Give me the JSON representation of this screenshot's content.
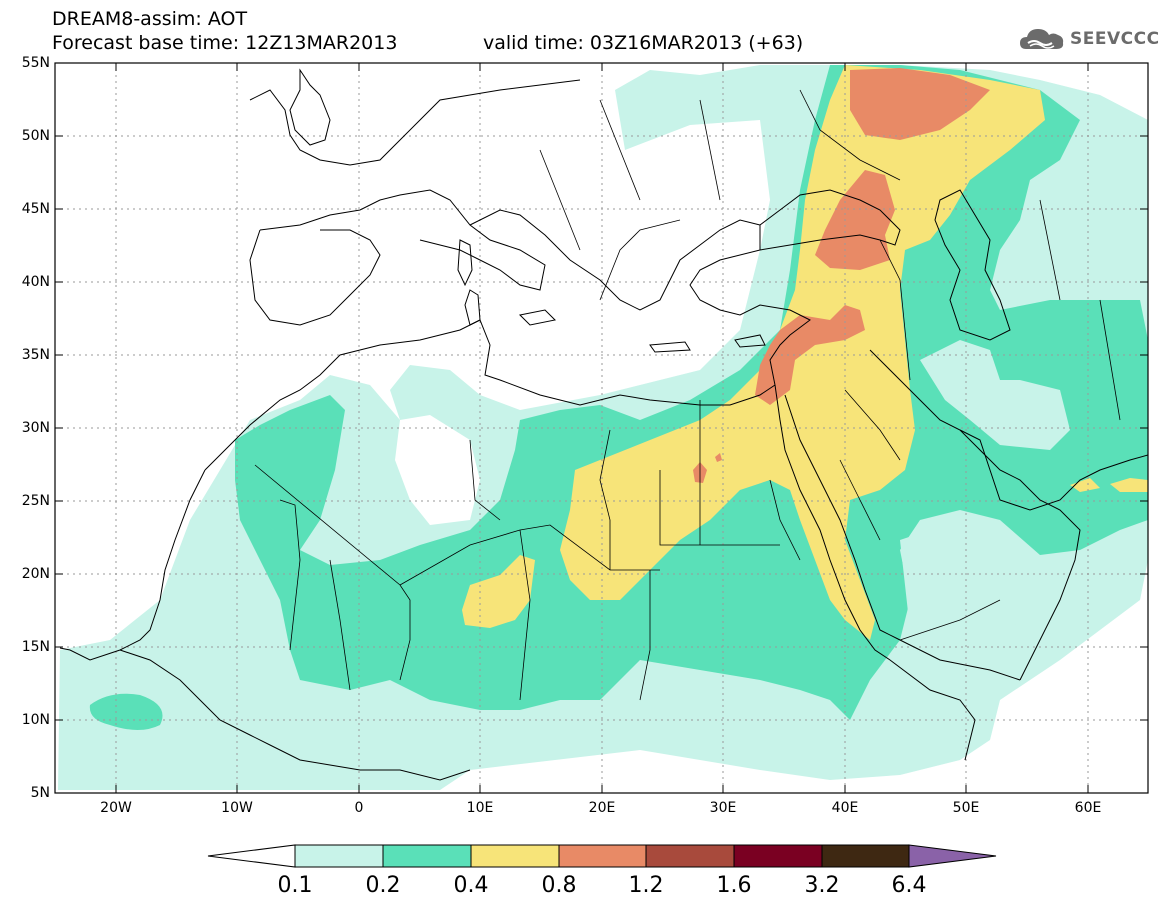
{
  "header": {
    "line1": "DREAM8-assim: AOT",
    "line2_left": "Forecast base time: 12Z13MAR2013",
    "line2_right": "valid time: 03Z16MAR2013 (+63)"
  },
  "logo": {
    "icon": "cloud-logo-icon",
    "text": "SEEVCCC"
  },
  "axes": {
    "lat_labels": [
      "55N",
      "50N",
      "45N",
      "40N",
      "35N",
      "30N",
      "25N",
      "20N",
      "15N",
      "10N",
      "5N"
    ],
    "lon_labels": [
      "20W",
      "10W",
      "0",
      "10E",
      "20E",
      "30E",
      "40E",
      "50E",
      "60E"
    ]
  },
  "colorbar": {
    "labels": [
      "0.1",
      "0.2",
      "0.4",
      "0.8",
      "1.2",
      "1.6",
      "3.2",
      "6.4"
    ],
    "colors": [
      "#ffffff",
      "#c8f3e9",
      "#5ae0b8",
      "#f7e479",
      "#e88a66",
      "#a84a3c",
      "#7a0022",
      "#3e2812",
      "#8a62a8"
    ]
  },
  "palette": {
    "light": "#c8f3e9",
    "teal": "#5ae0b8",
    "yellow": "#f7e479",
    "orange": "#e88a66",
    "border": "#000000",
    "grid": "#999999"
  }
}
